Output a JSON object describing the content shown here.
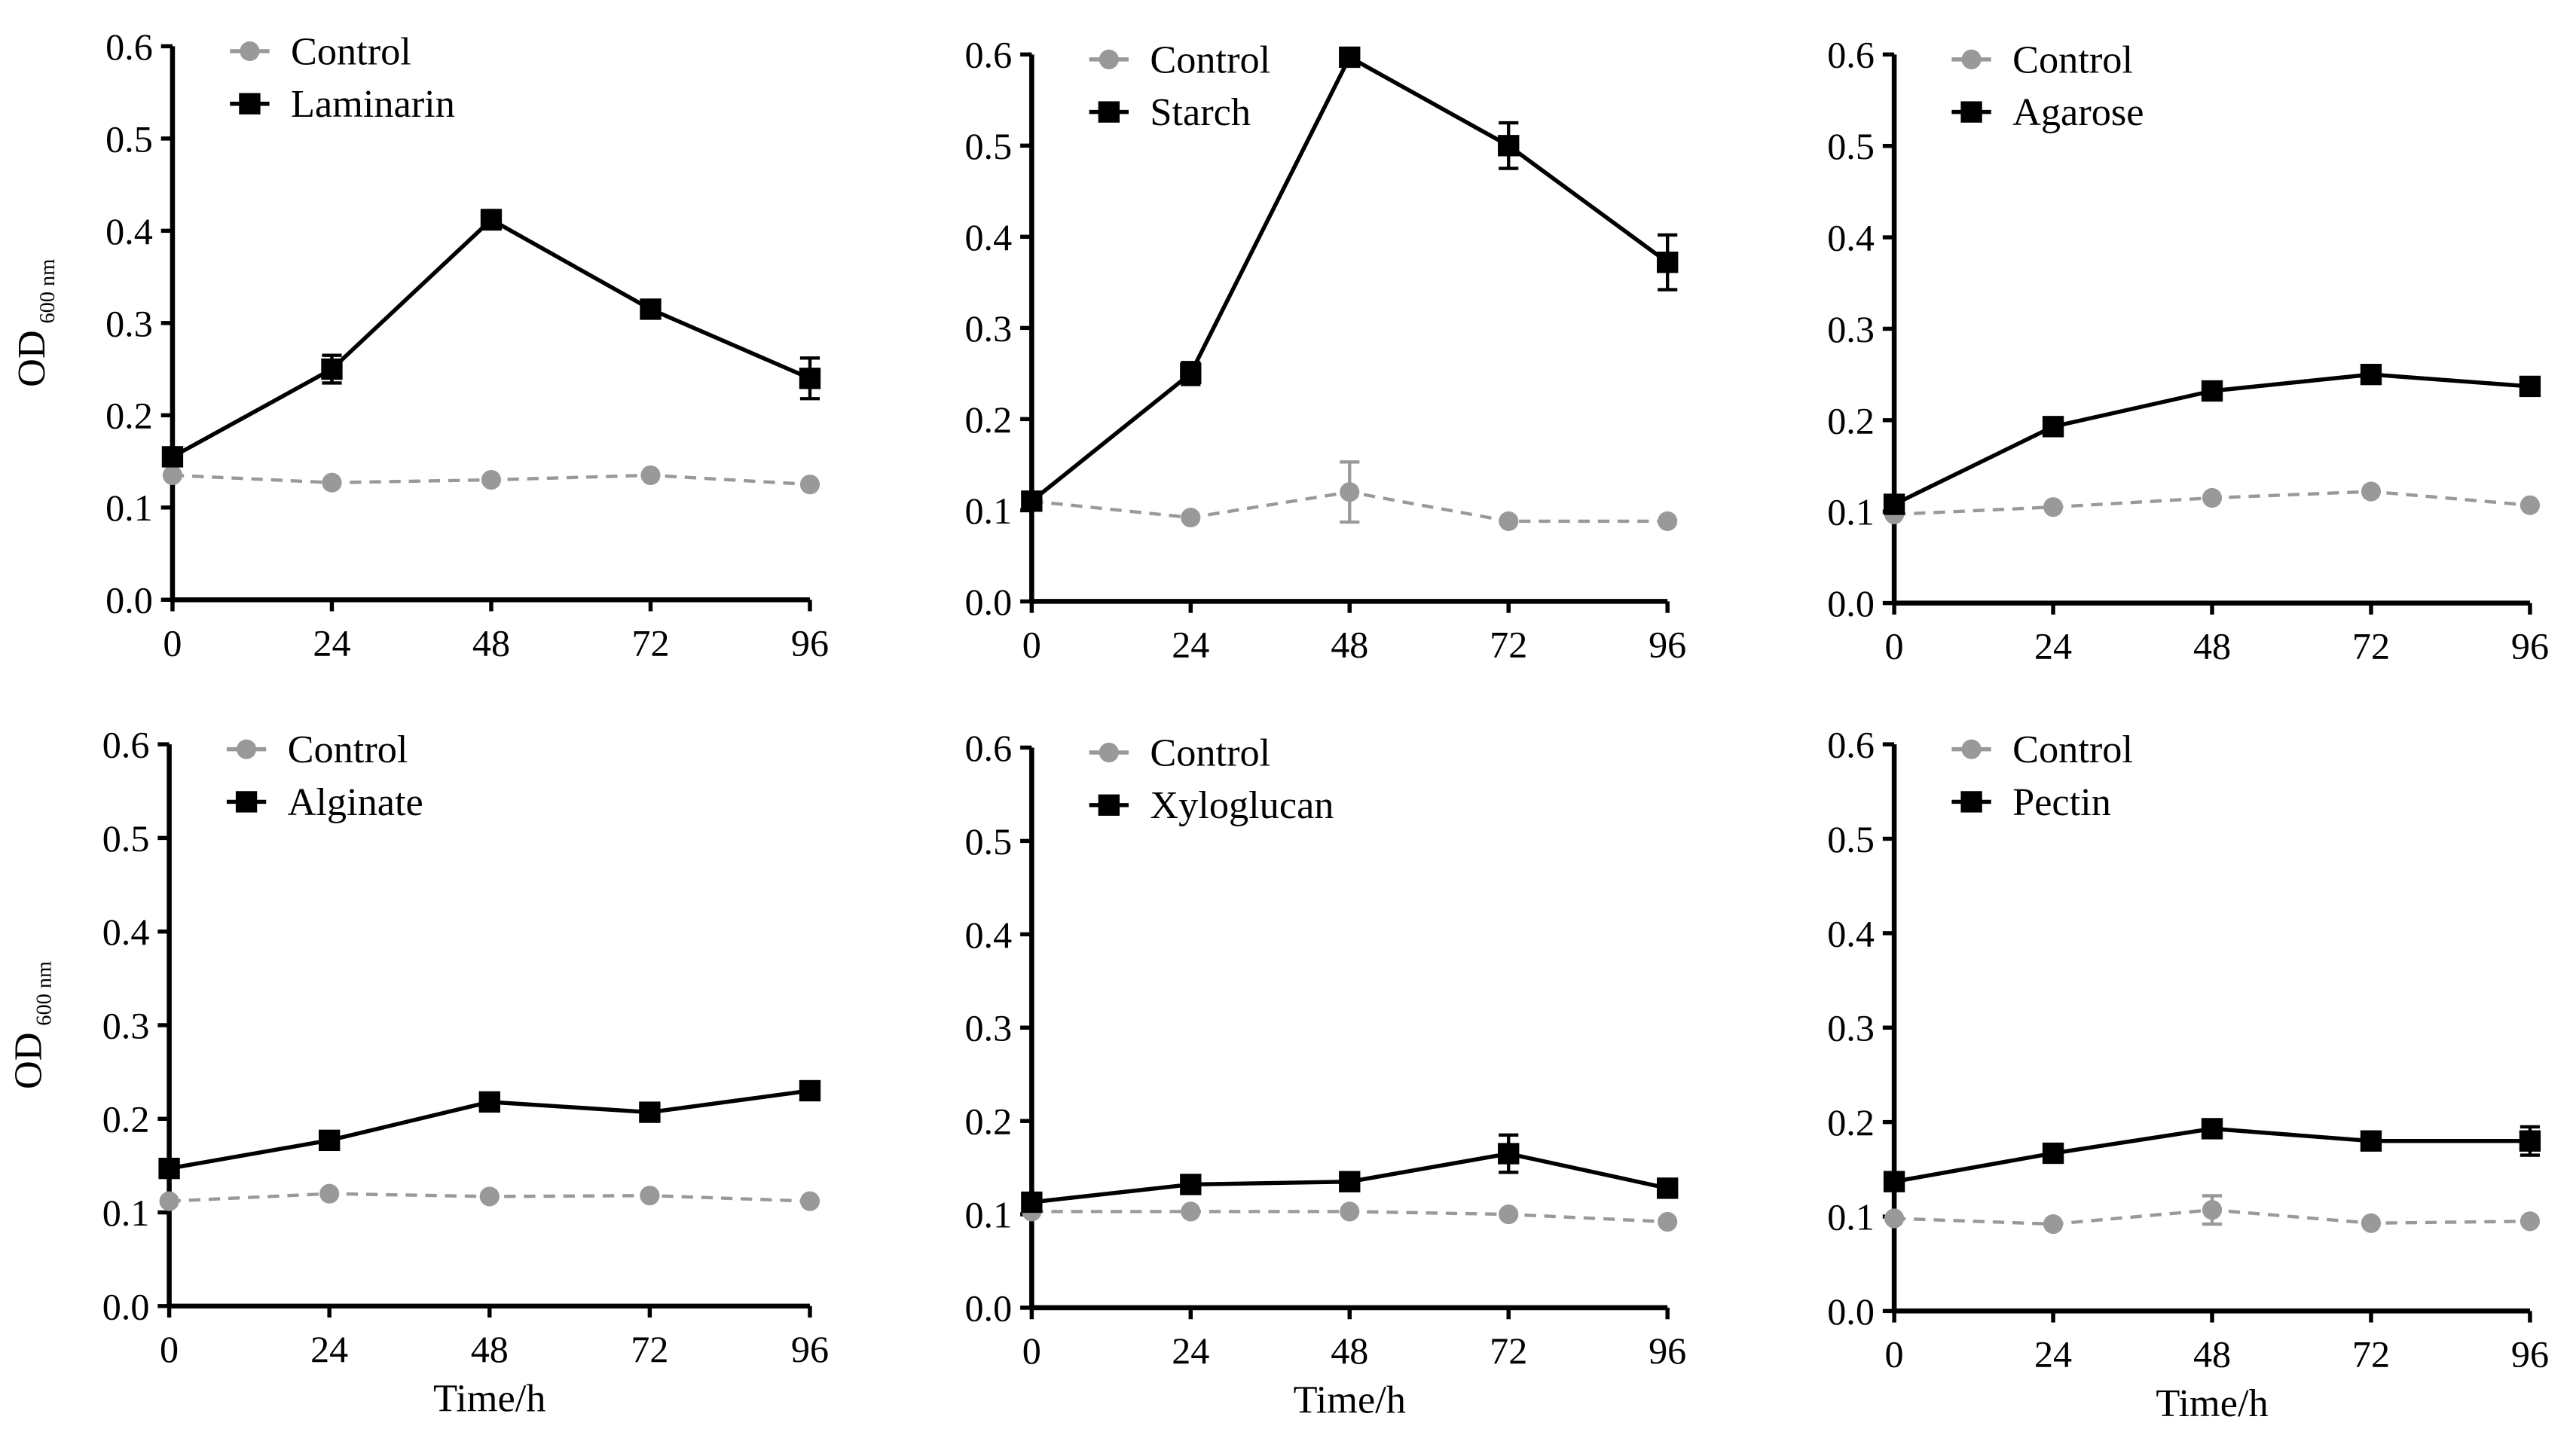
{
  "colors": {
    "control": "#999999",
    "treatment": "#000000"
  },
  "chart_data": [
    {
      "type": "line",
      "xlabel": "",
      "ylabel": "OD",
      "ylabel_sub": "600 nm",
      "x": [
        0,
        24,
        48,
        72,
        96
      ],
      "xticks": [
        "0",
        "24",
        "48",
        "72",
        "96"
      ],
      "ylim": [
        0,
        0.6
      ],
      "yticks": [
        "0.0",
        "0.1",
        "0.2",
        "0.3",
        "0.4",
        "0.5",
        "0.6"
      ],
      "legend": "top-left",
      "series": [
        {
          "name": "Control",
          "values": [
            0.135,
            0.127,
            0.13,
            0.135,
            0.125
          ],
          "errors": [
            0,
            0,
            0,
            0,
            0
          ]
        },
        {
          "name": "Laminarin",
          "values": [
            0.155,
            0.25,
            0.412,
            0.315,
            0.24
          ],
          "errors": [
            0,
            0.015,
            0.01,
            0,
            0.022
          ]
        }
      ]
    },
    {
      "type": "line",
      "xlabel": "",
      "ylabel": "",
      "x": [
        0,
        24,
        48,
        72,
        96
      ],
      "xticks": [
        "0",
        "24",
        "48",
        "72",
        "96"
      ],
      "ylim": [
        0,
        0.6
      ],
      "yticks": [
        "0.0",
        "0.1",
        "0.2",
        "0.3",
        "0.4",
        "0.5",
        "0.6"
      ],
      "legend": "top-left",
      "series": [
        {
          "name": "Control",
          "values": [
            0.11,
            0.092,
            0.12,
            0.088,
            0.088
          ],
          "errors": [
            0,
            0,
            0.033,
            0,
            0
          ]
        },
        {
          "name": "Starch",
          "values": [
            0.11,
            0.25,
            0.597,
            0.5,
            0.372
          ],
          "errors": [
            0,
            0.012,
            0,
            0.025,
            0.03
          ]
        }
      ]
    },
    {
      "type": "line",
      "xlabel": "",
      "ylabel": "",
      "x": [
        0,
        24,
        48,
        72,
        96
      ],
      "xticks": [
        "0",
        "24",
        "48",
        "72",
        "96"
      ],
      "ylim": [
        0,
        0.6
      ],
      "yticks": [
        "0.0",
        "0.1",
        "0.2",
        "0.3",
        "0.4",
        "0.5",
        "0.6"
      ],
      "legend": "top-left",
      "series": [
        {
          "name": "Control",
          "values": [
            0.097,
            0.105,
            0.115,
            0.122,
            0.107
          ],
          "errors": [
            0,
            0,
            0,
            0,
            0
          ]
        },
        {
          "name": "Agarose",
          "values": [
            0.108,
            0.193,
            0.232,
            0.25,
            0.237
          ],
          "errors": [
            0,
            0,
            0,
            0,
            0
          ]
        }
      ]
    },
    {
      "type": "line",
      "xlabel": "Time/h",
      "ylabel": "OD",
      "ylabel_sub": "600 nm",
      "x": [
        0,
        24,
        48,
        72,
        96
      ],
      "xticks": [
        "0",
        "24",
        "48",
        "72",
        "96"
      ],
      "ylim": [
        0,
        0.6
      ],
      "yticks": [
        "0.0",
        "0.1",
        "0.2",
        "0.3",
        "0.4",
        "0.5",
        "0.6"
      ],
      "legend": "top-left",
      "series": [
        {
          "name": "Control",
          "values": [
            0.112,
            0.12,
            0.117,
            0.118,
            0.112
          ],
          "errors": [
            0,
            0,
            0,
            0,
            0
          ]
        },
        {
          "name": "Alginate",
          "values": [
            0.147,
            0.177,
            0.218,
            0.207,
            0.23
          ],
          "errors": [
            0,
            0,
            0,
            0,
            0
          ]
        }
      ]
    },
    {
      "type": "line",
      "xlabel": "Time/h",
      "ylabel": "",
      "x": [
        0,
        24,
        48,
        72,
        96
      ],
      "xticks": [
        "0",
        "24",
        "48",
        "72",
        "96"
      ],
      "ylim": [
        0,
        0.6
      ],
      "yticks": [
        "0.0",
        "0.1",
        "0.2",
        "0.3",
        "0.4",
        "0.5",
        "0.6"
      ],
      "legend": "top-left",
      "series": [
        {
          "name": "Control",
          "values": [
            0.103,
            0.103,
            0.103,
            0.1,
            0.092
          ],
          "errors": [
            0,
            0,
            0,
            0,
            0
          ]
        },
        {
          "name": "Xyloglucan",
          "values": [
            0.113,
            0.132,
            0.135,
            0.165,
            0.128
          ],
          "errors": [
            0,
            0,
            0,
            0.02,
            0
          ]
        }
      ]
    },
    {
      "type": "line",
      "xlabel": "Time/h",
      "ylabel": "",
      "x": [
        0,
        24,
        48,
        72,
        96
      ],
      "xticks": [
        "0",
        "24",
        "48",
        "72",
        "96"
      ],
      "ylim": [
        0,
        0.6
      ],
      "yticks": [
        "0.0",
        "0.1",
        "0.2",
        "0.3",
        "0.4",
        "0.5",
        "0.6"
      ],
      "legend": "top-left",
      "series": [
        {
          "name": "Control",
          "values": [
            0.098,
            0.092,
            0.107,
            0.093,
            0.095
          ],
          "errors": [
            0,
            0,
            0.015,
            0,
            0
          ]
        },
        {
          "name": "Pectin",
          "values": [
            0.137,
            0.167,
            0.193,
            0.18,
            0.18
          ],
          "errors": [
            0,
            0,
            0,
            0,
            0.015
          ]
        }
      ]
    }
  ]
}
